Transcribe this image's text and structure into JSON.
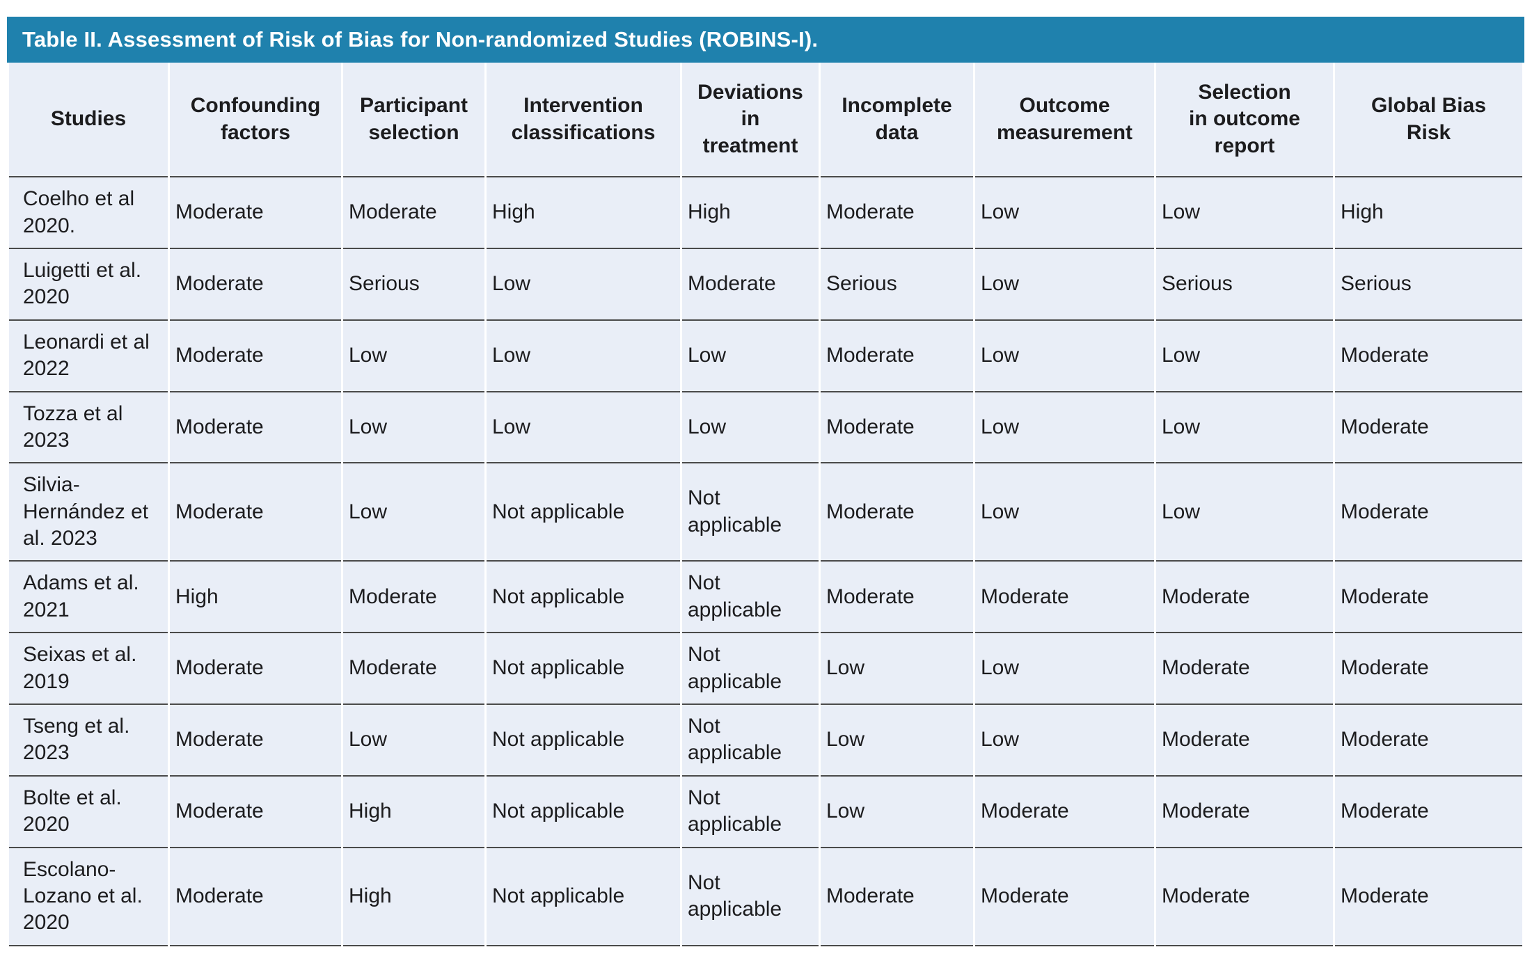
{
  "table": {
    "title": "Table II. Assessment of Risk of Bias for Non-randomized Studies (ROBINS-I).",
    "columns": [
      "Studies",
      "Confounding\nfactors",
      "Participant\nselection",
      "Intervention\nclassifications",
      "Deviations\nin\ntreatment",
      "Incomplete\ndata",
      "Outcome\nmeasurement",
      "Selection\nin outcome\nreport",
      "Global Bias\nRisk"
    ],
    "rows": [
      {
        "study": "Coelho et al 2020.",
        "values": [
          "Moderate",
          "Moderate",
          "High",
          "High",
          "Moderate",
          "Low",
          "Low",
          "High"
        ]
      },
      {
        "study": "Luigetti et al. 2020",
        "values": [
          "Moderate",
          "Serious",
          "Low",
          "Moderate",
          "Serious",
          "Low",
          "Serious",
          "Serious"
        ]
      },
      {
        "study": "Leonardi et al 2022",
        "values": [
          "Moderate",
          "Low",
          "Low",
          "Low",
          "Moderate",
          "Low",
          "Low",
          "Moderate"
        ]
      },
      {
        "study": "Tozza et al 2023",
        "values": [
          "Moderate",
          "Low",
          "Low",
          "Low",
          "Moderate",
          "Low",
          "Low",
          "Moderate"
        ]
      },
      {
        "study": "Silvia-Hernández et al. 2023",
        "values": [
          "Moderate",
          "Low",
          "Not applicable",
          "Not applicable",
          "Moderate",
          "Low",
          "Low",
          "Moderate"
        ]
      },
      {
        "study": "Adams et al. 2021",
        "values": [
          "High",
          "Moderate",
          "Not applicable",
          "Not applicable",
          "Moderate",
          "Moderate",
          "Moderate",
          "Moderate"
        ]
      },
      {
        "study": "Seixas et al. 2019",
        "values": [
          "Moderate",
          "Moderate",
          "Not applicable",
          "Not applicable",
          "Low",
          "Low",
          "Moderate",
          "Moderate"
        ]
      },
      {
        "study": "Tseng et al. 2023",
        "values": [
          "Moderate",
          "Low",
          "Not applicable",
          "Not applicable",
          "Low",
          "Low",
          "Moderate",
          "Moderate"
        ]
      },
      {
        "study": "Bolte et al. 2020",
        "values": [
          "Moderate",
          "High",
          "Not applicable",
          "Not applicable",
          "Low",
          "Moderate",
          "Moderate",
          "Moderate"
        ]
      },
      {
        "study": "Escolano-Lozano et al. 2020",
        "values": [
          "Moderate",
          "High",
          "Not applicable",
          "Not applicable",
          "Moderate",
          "Moderate",
          "Moderate",
          "Moderate"
        ]
      }
    ]
  },
  "colors": {
    "header_bar": "#1f81ad",
    "cell_background": "#e9eef7",
    "rule": "#4a4a4a",
    "text": "#1c1c1e",
    "title_text": "#ffffff"
  }
}
